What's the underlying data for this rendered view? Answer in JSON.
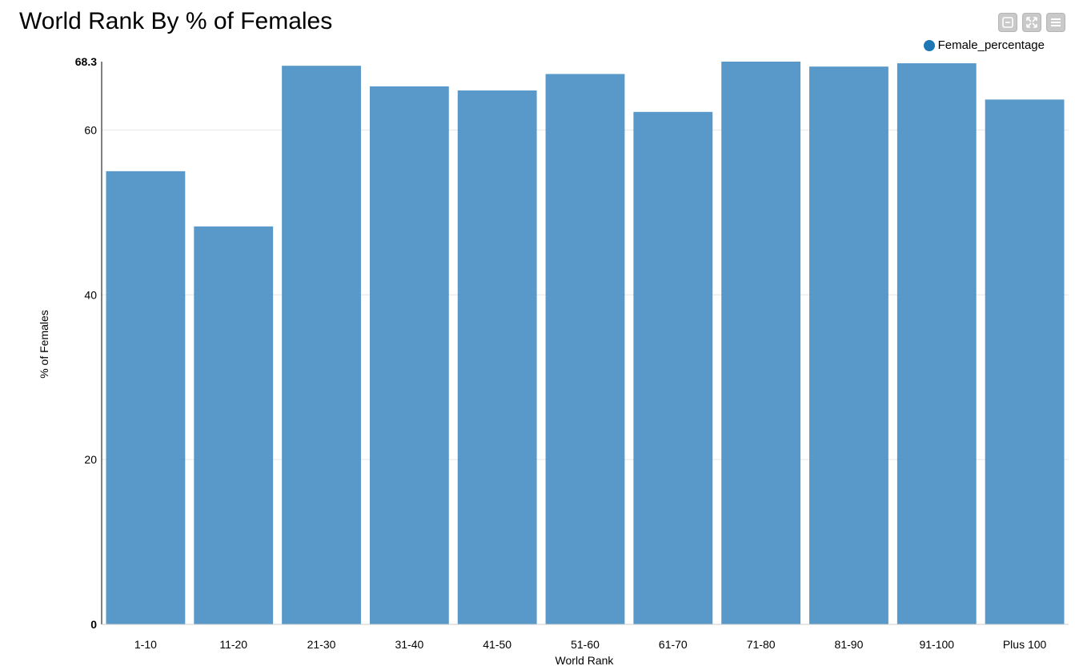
{
  "chart_data": {
    "type": "bar",
    "title": "World Rank By % of Females",
    "xlabel": "World Rank",
    "ylabel": "% of Females",
    "categories": [
      "1-10",
      "11-20",
      "21-30",
      "31-40",
      "41-50",
      "51-60",
      "61-70",
      "71-80",
      "81-90",
      "91-100",
      "Plus 100"
    ],
    "series": [
      {
        "name": "Female_percentage",
        "values": [
          55.0,
          48.3,
          67.8,
          65.3,
          64.8,
          66.8,
          62.2,
          68.3,
          67.7,
          68.1,
          63.7
        ]
      }
    ],
    "ylim": [
      0,
      68.3
    ],
    "yticks": [
      0,
      20,
      40,
      60
    ],
    "ymax_label": "68.3",
    "grid": true,
    "legend_position": "top-right",
    "colors": {
      "bar": "#4a90c4",
      "legend": "#1f77b4",
      "grid": "#e6e6e6",
      "axis": "#000000"
    }
  },
  "toolbar": {
    "icons": [
      "minimize-icon",
      "expand-icon",
      "menu-icon"
    ]
  }
}
